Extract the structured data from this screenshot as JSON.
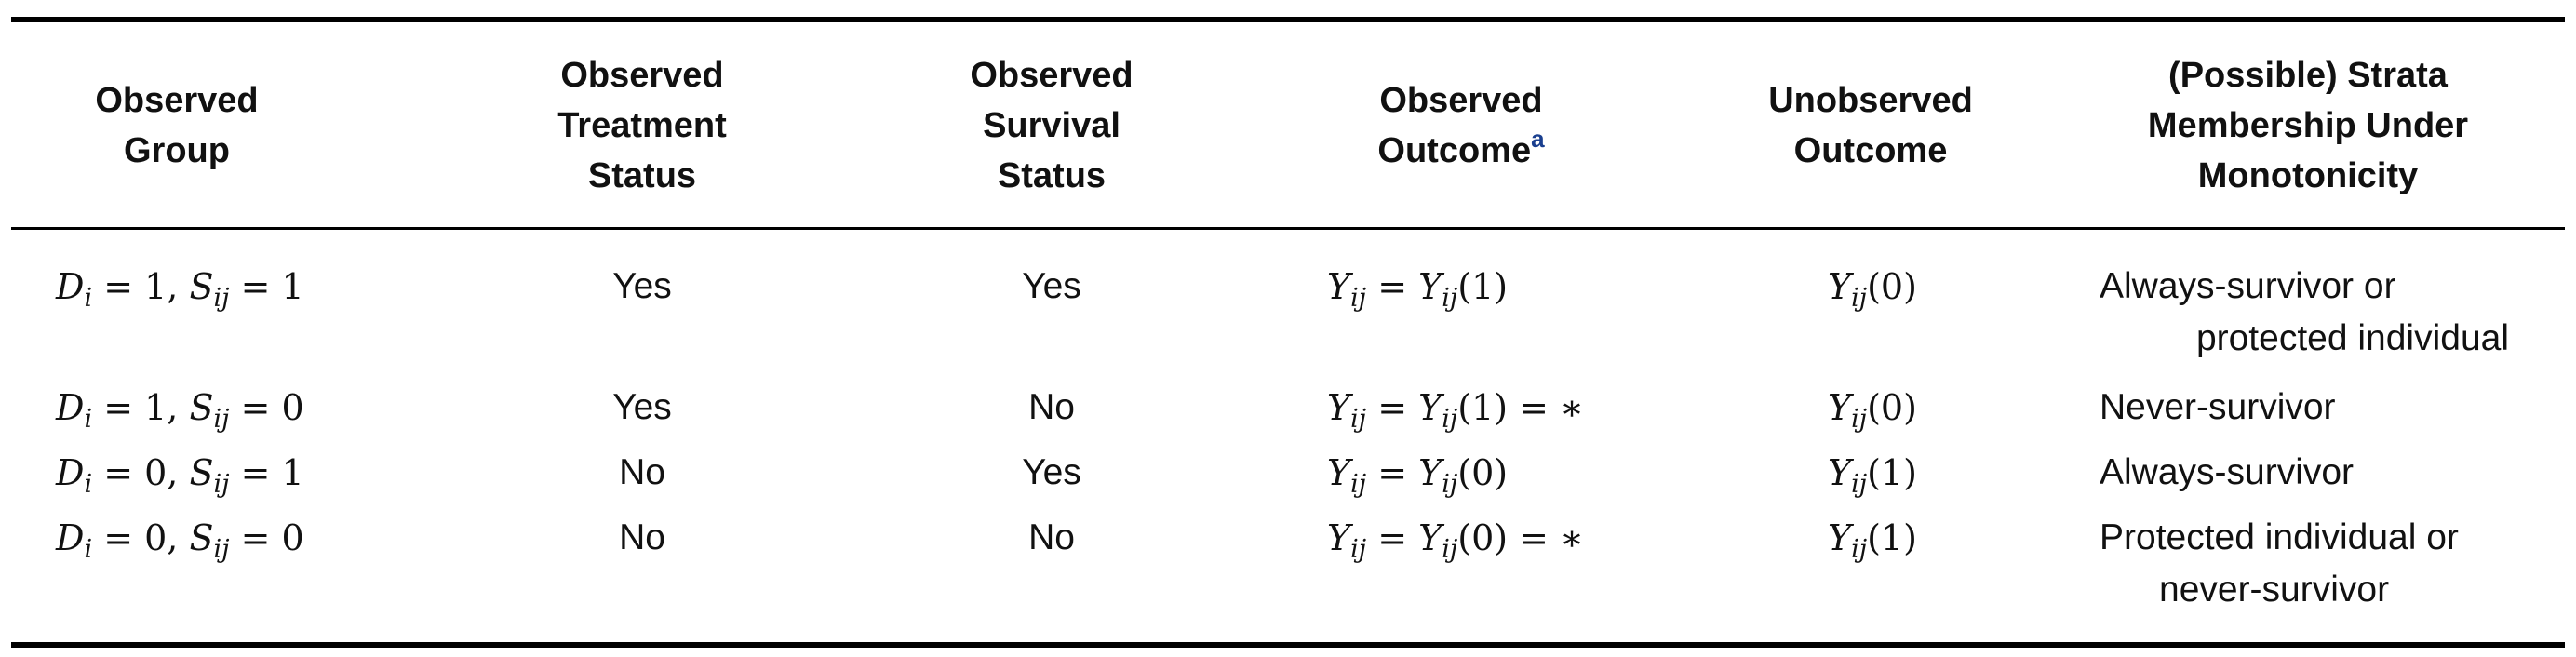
{
  "table": {
    "headers": {
      "group": [
        "Observed",
        "Group"
      ],
      "treatment": [
        "Observed",
        "Treatment",
        "Status"
      ],
      "survival": [
        "Observed",
        "Survival",
        "Status"
      ],
      "observed_outcome": [
        "Observed",
        "Outcome"
      ],
      "observed_outcome_note": "a",
      "unobserved": [
        "Unobserved",
        "Outcome"
      ],
      "strata": [
        "(Possible) Strata",
        "Membership Under",
        "Monotonicity"
      ]
    },
    "rows": [
      {
        "group": {
          "d": "D",
          "d_sub": "i",
          "d_val": "= 1,",
          "s": "S",
          "s_sub": "ij",
          "s_val": "= 1"
        },
        "treatment": "Yes",
        "survival": "Yes",
        "obs": {
          "lhs": "Y",
          "lhs_sub": "ij",
          "eq": "=",
          "rhs": "Y",
          "rhs_sub": "ij",
          "arg": "(1)",
          "tail": ""
        },
        "unobs": {
          "y": "Y",
          "y_sub": "ij",
          "arg": "(0)"
        },
        "strata": [
          "Always-survivor or",
          "protected individual"
        ]
      },
      {
        "group": {
          "d": "D",
          "d_sub": "i",
          "d_val": "= 1,",
          "s": "S",
          "s_sub": "ij",
          "s_val": "= 0"
        },
        "treatment": "Yes",
        "survival": "No",
        "obs": {
          "lhs": "Y",
          "lhs_sub": "ij",
          "eq": "=",
          "rhs": "Y",
          "rhs_sub": "ij",
          "arg": "(1)",
          "tail": "= ∗"
        },
        "unobs": {
          "y": "Y",
          "y_sub": "ij",
          "arg": "(0)"
        },
        "strata": [
          "Never-survivor",
          ""
        ]
      },
      {
        "group": {
          "d": "D",
          "d_sub": "i",
          "d_val": "= 0,",
          "s": "S",
          "s_sub": "ij",
          "s_val": "= 1"
        },
        "treatment": "No",
        "survival": "Yes",
        "obs": {
          "lhs": "Y",
          "lhs_sub": "ij",
          "eq": "=",
          "rhs": "Y",
          "rhs_sub": "ij",
          "arg": "(0)",
          "tail": ""
        },
        "unobs": {
          "y": "Y",
          "y_sub": "ij",
          "arg": "(1)"
        },
        "strata": [
          "Always-survivor",
          ""
        ]
      },
      {
        "group": {
          "d": "D",
          "d_sub": "i",
          "d_val": "= 0,",
          "s": "S",
          "s_sub": "ij",
          "s_val": "= 0"
        },
        "treatment": "No",
        "survival": "No",
        "obs": {
          "lhs": "Y",
          "lhs_sub": "ij",
          "eq": "=",
          "rhs": "Y",
          "rhs_sub": "ij",
          "arg": "(0)",
          "tail": "= ∗"
        },
        "unobs": {
          "y": "Y",
          "y_sub": "ij",
          "arg": "(1)"
        },
        "strata": [
          "Protected individual or",
          "never-survivor"
        ]
      }
    ]
  }
}
